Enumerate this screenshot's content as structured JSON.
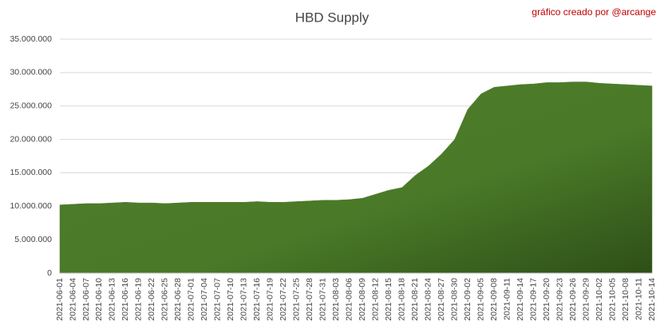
{
  "chart_data": {
    "type": "area",
    "title": "HBD Supply",
    "annotation": "gráfico creado por @arcange",
    "categories": [
      "2021-06-01",
      "2021-06-04",
      "2021-06-07",
      "2021-06-10",
      "2021-06-13",
      "2021-06-16",
      "2021-06-19",
      "2021-06-22",
      "2021-06-25",
      "2021-06-28",
      "2021-07-01",
      "2021-07-04",
      "2021-07-07",
      "2021-07-10",
      "2021-07-13",
      "2021-07-16",
      "2021-07-19",
      "2021-07-22",
      "2021-07-25",
      "2021-07-28",
      "2021-07-31",
      "2021-08-03",
      "2021-08-06",
      "2021-08-09",
      "2021-08-12",
      "2021-08-15",
      "2021-08-18",
      "2021-08-21",
      "2021-08-24",
      "2021-08-27",
      "2021-08-30",
      "2021-09-02",
      "2021-09-05",
      "2021-09-08",
      "2021-09-11",
      "2021-09-14",
      "2021-09-17",
      "2021-09-20",
      "2021-09-23",
      "2021-09-26",
      "2021-09-29",
      "2021-10-02",
      "2021-10-05",
      "2021-10-08",
      "2021-10-11",
      "2021-10-14"
    ],
    "values": [
      10200000,
      10300000,
      10400000,
      10400000,
      10500000,
      10600000,
      10500000,
      10500000,
      10400000,
      10500000,
      10600000,
      10600000,
      10600000,
      10600000,
      10600000,
      10700000,
      10600000,
      10600000,
      10700000,
      10800000,
      10900000,
      10900000,
      11000000,
      11200000,
      11800000,
      12400000,
      12800000,
      14600000,
      16000000,
      17800000,
      20000000,
      24500000,
      26800000,
      27800000,
      28000000,
      28200000,
      28300000,
      28500000,
      28500000,
      28600000,
      28600000,
      28400000,
      28300000,
      28200000,
      28100000,
      28000000
    ],
    "color": "#4e7d2b",
    "ylim": [
      0,
      35000000
    ],
    "yticks": [
      0,
      {
        "value": 5000000,
        "label": "5.000.000"
      },
      {
        "value": 10000000,
        "label": "10.000.000"
      },
      {
        "value": 15000000,
        "label": "15.000.000"
      },
      {
        "value": 20000000,
        "label": "20.000.000"
      },
      {
        "value": 25000000,
        "label": "25.000.000"
      },
      {
        "value": 30000000,
        "label": "30.000.000"
      },
      {
        "value": 35000000,
        "label": "35.000.000"
      }
    ],
    "grid": true
  }
}
